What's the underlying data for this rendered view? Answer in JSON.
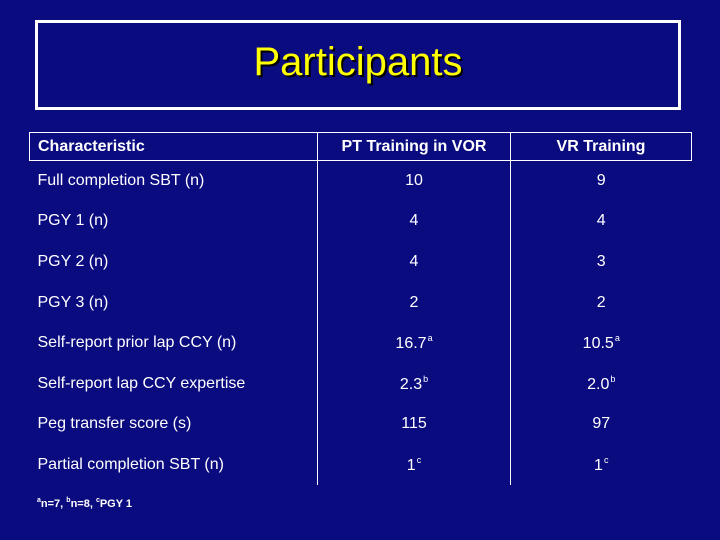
{
  "slide": {
    "title": "Participants",
    "colors": {
      "background": "#0b0b80",
      "title": "#ffff00",
      "text": "#ffffff"
    }
  },
  "table": {
    "headers": [
      "Characteristic",
      "PT Training in VOR",
      "VR Training"
    ],
    "rows": [
      {
        "label": "Full completion SBT (n)",
        "pt": "10",
        "pt_sup": "",
        "vr": "9",
        "vr_sup": ""
      },
      {
        "label": "PGY  1 (n)",
        "pt": "4",
        "pt_sup": "",
        "vr": "4",
        "vr_sup": ""
      },
      {
        "label": "PGY 2 (n)",
        "pt": "4",
        "pt_sup": "",
        "vr": "3",
        "vr_sup": ""
      },
      {
        "label": "PGY 3 (n)",
        "pt": "2",
        "pt_sup": "",
        "vr": "2",
        "vr_sup": ""
      },
      {
        "label": "Self-report prior lap CCY (n)",
        "pt": "16.7",
        "pt_sup": "a",
        "vr": "10.5",
        "vr_sup": "a"
      },
      {
        "label": "Self-report lap CCY expertise",
        "pt": "2.3",
        "pt_sup": "b",
        "vr": "2.0",
        "vr_sup": "b"
      },
      {
        "label": "Peg transfer score (s)",
        "pt": "115",
        "pt_sup": "",
        "vr": "97",
        "vr_sup": ""
      },
      {
        "label": "Partial completion SBT (n)",
        "pt": "1",
        "pt_sup": "c",
        "vr": "1",
        "vr_sup": "c"
      }
    ]
  },
  "footnote": {
    "a_mark": "a",
    "a_text": "n=7, ",
    "b_mark": "b",
    "b_text": "n=8, ",
    "c_mark": "c",
    "c_text": "PGY 1"
  }
}
